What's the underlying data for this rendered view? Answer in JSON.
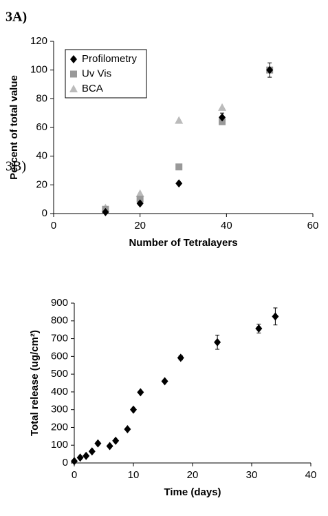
{
  "chart_data": [
    {
      "type": "scatter",
      "panel_label": "3A)",
      "xlabel": "Number of Tetralayers",
      "ylabel": "Percent of total value",
      "xlim": [
        0,
        60
      ],
      "xticks": [
        0,
        20,
        40,
        60
      ],
      "ylim": [
        0,
        120
      ],
      "yticks": [
        0,
        20,
        40,
        60,
        80,
        100,
        120
      ],
      "legend": "upper left",
      "series": [
        {
          "name": "Profilometry",
          "color": "#000000",
          "marker": "diamond",
          "x": [
            12,
            20,
            29,
            39,
            50
          ],
          "values": [
            1,
            7,
            21,
            67,
            100
          ],
          "errors": [
            null,
            null,
            null,
            3,
            null
          ]
        },
        {
          "name": "Uv Vis",
          "color": "#999999",
          "marker": "square",
          "x": [
            12,
            20,
            29,
            39,
            50
          ],
          "values": [
            3,
            10,
            32.5,
            64,
            100
          ],
          "errors": [
            null,
            null,
            null,
            null,
            5
          ]
        },
        {
          "name": "BCA",
          "color": "#bbbbbb",
          "marker": "triangle",
          "x": [
            12,
            20,
            29,
            39
          ],
          "values": [
            4,
            14,
            65,
            74
          ],
          "errors": [
            null,
            null,
            null,
            null
          ]
        }
      ]
    },
    {
      "type": "scatter",
      "panel_label": "3B)",
      "xlabel": "Time (days)",
      "ylabel": "Total release (ug/cm²)",
      "xlim": [
        0,
        40
      ],
      "xticks": [
        0,
        10,
        20,
        30,
        40
      ],
      "ylim": [
        0,
        900
      ],
      "yticks": [
        0,
        100,
        200,
        300,
        400,
        500,
        600,
        700,
        800,
        900
      ],
      "series": [
        {
          "color": "#000000",
          "marker": "diamond",
          "x": [
            0,
            1,
            2,
            3,
            4,
            6,
            7,
            9,
            10,
            11.2,
            15.3,
            18,
            24.2,
            31.2,
            34
          ],
          "values": [
            10,
            30,
            40,
            65,
            110,
            95,
            125,
            190,
            300,
            398,
            460,
            592,
            680,
            757,
            825
          ],
          "errors": [
            null,
            null,
            null,
            null,
            null,
            null,
            null,
            null,
            null,
            null,
            null,
            12,
            40,
            25,
            48
          ]
        }
      ]
    }
  ]
}
